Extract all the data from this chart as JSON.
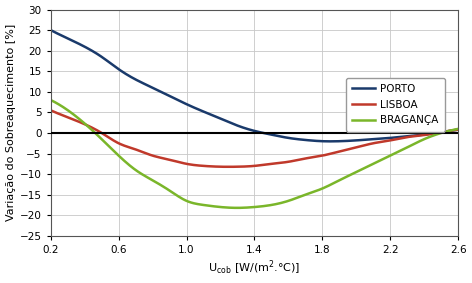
{
  "xlim": [
    0.2,
    2.6
  ],
  "ylim": [
    -25,
    30
  ],
  "xticks": [
    0.2,
    0.6,
    1.0,
    1.4,
    1.8,
    2.2,
    2.6
  ],
  "yticks": [
    -25,
    -20,
    -15,
    -10,
    -5,
    0,
    5,
    10,
    15,
    20,
    25,
    30
  ],
  "porto_x": [
    0.2,
    0.35,
    0.5,
    0.6,
    0.7,
    0.8,
    0.9,
    1.0,
    1.1,
    1.2,
    1.3,
    1.4,
    1.5,
    1.6,
    1.7,
    1.8,
    1.9,
    2.0,
    2.1,
    2.2,
    2.3,
    2.4,
    2.5,
    2.6
  ],
  "porto_y": [
    25.0,
    22.0,
    18.5,
    15.5,
    13.0,
    11.0,
    9.0,
    7.0,
    5.2,
    3.5,
    1.8,
    0.5,
    -0.4,
    -1.2,
    -1.7,
    -2.0,
    -2.0,
    -1.8,
    -1.5,
    -1.2,
    -0.8,
    -0.4,
    0.2,
    0.8
  ],
  "lisboa_x": [
    0.2,
    0.35,
    0.5,
    0.6,
    0.7,
    0.8,
    0.9,
    1.0,
    1.1,
    1.2,
    1.3,
    1.4,
    1.5,
    1.6,
    1.7,
    1.8,
    1.9,
    2.0,
    2.1,
    2.2,
    2.3,
    2.4,
    2.5,
    2.6
  ],
  "lisboa_y": [
    5.5,
    3.0,
    0.0,
    -2.5,
    -4.0,
    -5.5,
    -6.5,
    -7.5,
    -8.0,
    -8.2,
    -8.2,
    -8.0,
    -7.5,
    -7.0,
    -6.2,
    -5.5,
    -4.5,
    -3.5,
    -2.5,
    -1.8,
    -1.0,
    -0.5,
    0.2,
    0.8
  ],
  "braganca_x": [
    0.2,
    0.35,
    0.5,
    0.6,
    0.7,
    0.8,
    0.9,
    1.0,
    1.1,
    1.2,
    1.3,
    1.4,
    1.5,
    1.6,
    1.7,
    1.8,
    1.9,
    2.0,
    2.1,
    2.2,
    2.3,
    2.4,
    2.5,
    2.6
  ],
  "braganca_y": [
    8.0,
    4.0,
    -1.5,
    -5.5,
    -9.0,
    -11.5,
    -14.0,
    -16.5,
    -17.5,
    -18.0,
    -18.2,
    -18.0,
    -17.5,
    -16.5,
    -15.0,
    -13.5,
    -11.5,
    -9.5,
    -7.5,
    -5.5,
    -3.5,
    -1.5,
    0.0,
    1.0
  ],
  "porto_color": "#1a3a6b",
  "lisboa_color": "#c0392b",
  "braganca_color": "#7ab62a",
  "legend_labels": [
    "PORTO",
    "LISBOA",
    "BRAGANÇA"
  ],
  "bg_color": "#ffffff",
  "grid_color": "#c8c8c8",
  "linewidth": 1.8,
  "tick_fontsize": 7.5,
  "label_fontsize": 8.0,
  "legend_fontsize": 7.5
}
